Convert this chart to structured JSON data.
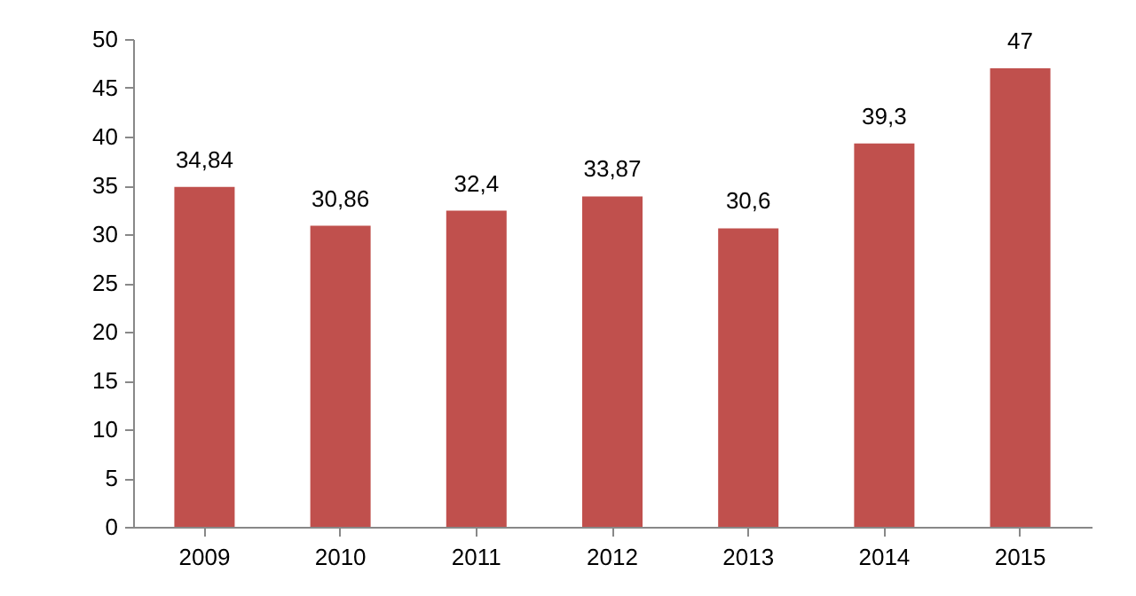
{
  "chart_data": {
    "type": "bar",
    "categories": [
      "2009",
      "2010",
      "2011",
      "2012",
      "2013",
      "2014",
      "2015"
    ],
    "values": [
      34.84,
      30.86,
      32.4,
      33.87,
      30.6,
      39.3,
      47
    ],
    "value_labels": [
      "34,84",
      "30,86",
      "32,4",
      "33,87",
      "30,6",
      "39,3",
      "47"
    ],
    "color": "#c0504d",
    "ylim": [
      0,
      50
    ],
    "yticks": [
      0,
      5,
      10,
      15,
      20,
      25,
      30,
      35,
      40,
      45,
      50
    ],
    "grid": false
  }
}
